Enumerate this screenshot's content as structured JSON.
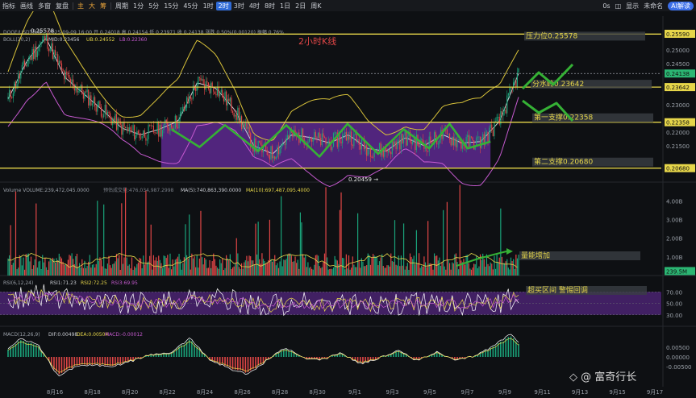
{
  "toolbar": {
    "items": [
      "指标",
      "画线",
      "多窗",
      "复盘",
      "主",
      "大",
      "筹",
      "周期",
      "1分",
      "5分",
      "15分",
      "45分",
      "1时",
      "2时",
      "3时",
      "4时",
      "8时",
      "1日",
      "2日",
      "周K"
    ],
    "active_period": "2时",
    "right_text": "0s",
    "settings_label": "显示",
    "account_label": "未命名",
    "ai_label": "AI解读"
  },
  "header": {
    "symbol": "DOGE/USDT永续",
    "quote": "2025-09-09 16:00 开 0.24018 高 0.24154 低 0.23971 收 0.24138 涨跌 0.50%(0.00120) 振幅 0.76%",
    "boll_label": "BOLL(20,2)",
    "boll_mid": "MID:0.23456",
    "boll_ub": "UB:0.24552",
    "boll_lb": "LB:0.22360"
  },
  "volume_header": {
    "label": "Volume VOLUME:239,472,045.0000",
    "est": "预估成交量:476,034,987.2998",
    "ma5": "MA(5):740,863,390.0000",
    "ma10": "MA(10):697,487,095.4000"
  },
  "rsi_header": {
    "label": "RSI(6,12,24)",
    "rsi1": "RSI1:71.23",
    "rsi2": "RSI2:72.25",
    "rsi3": "RSI3:69.95"
  },
  "macd_header": {
    "label": "MACD(12,26,9)",
    "dif": "DIF:0.00498",
    "dea": "DEA:0.00504",
    "macd": "MACD:-0.00012"
  },
  "annotations": {
    "title": "2小时K线",
    "resistance": "压力位0.25578",
    "watershed": "分水岭0.23642",
    "support1": "第一支撑0.22358",
    "support2": "第二支撑0.20680",
    "peak_label": "0.25578",
    "low_label": "0.20459",
    "volume_note": "量能增加",
    "rsi_note": "超买区间 警惕回调",
    "watermark": "@ 富奇行长"
  },
  "price_axis": [
    "0.25590",
    "0.25000",
    "0.24500",
    "0.24138",
    "0.23642",
    "0.23000",
    "0.22358",
    "0.22000",
    "0.21500",
    "0.20680"
  ],
  "volume_axis": [
    "4.00B",
    "3.00B",
    "2.00B",
    "1.00B",
    "239.5M"
  ],
  "rsi_axis": [
    "70.00",
    "50.00",
    "30.00"
  ],
  "macd_axis": [
    "0.00500",
    "0.00000",
    "-0.00500"
  ],
  "x_axis": [
    "8月16",
    "8月18",
    "8月20",
    "8月22",
    "8月24",
    "8月26",
    "8月28",
    "8月30",
    "9月1",
    "9月3",
    "9月5",
    "9月7",
    "9月9",
    "9月11",
    "9月13",
    "9月15",
    "9月17"
  ],
  "colors": {
    "up": "#1aa37a",
    "down": "#e04646",
    "level": "#e6d64a",
    "boll": "#d8c23a",
    "purple": "#6c2ea6",
    "arrow": "#35b135",
    "current": "#2bb673"
  },
  "chart_data": {
    "type": "candlestick",
    "title": "2小时K线",
    "symbol": "DOGE/USDT永续",
    "interval": "2h",
    "last_close": 0.24138,
    "horizontal_levels": [
      {
        "name": "压力位",
        "value": 0.25578
      },
      {
        "name": "分水岭",
        "value": 0.23642
      },
      {
        "name": "第一支撑",
        "value": 0.22358
      },
      {
        "name": "第二支撑",
        "value": 0.2068
      }
    ],
    "range_box": {
      "low": 0.2068,
      "high": 0.2236,
      "x_from": "8月26",
      "x_to": "9月8"
    },
    "marked_high": 0.25578,
    "marked_low": 0.20459,
    "close_path": [
      [
        "8月13",
        0.232
      ],
      [
        "8月14",
        0.246
      ],
      [
        "8月15",
        0.2545
      ],
      [
        "8月16",
        0.24
      ],
      [
        "8月17",
        0.234
      ],
      [
        "8月18",
        0.228
      ],
      [
        "8月19",
        0.2215
      ],
      [
        "8月20",
        0.219
      ],
      [
        "8月21",
        0.221
      ],
      [
        "8月22",
        0.224
      ],
      [
        "8月23",
        0.238
      ],
      [
        "8月24",
        0.236
      ],
      [
        "8月25",
        0.228
      ],
      [
        "8月26",
        0.215
      ],
      [
        "8月27",
        0.212
      ],
      [
        "8月28",
        0.219
      ],
      [
        "8月29",
        0.218
      ],
      [
        "8月30",
        0.216
      ],
      [
        "8月31",
        0.219
      ],
      [
        "9月1",
        0.214
      ],
      [
        "9月2",
        0.213
      ],
      [
        "9月3",
        0.218
      ],
      [
        "9月4",
        0.215
      ],
      [
        "9月5",
        0.219
      ],
      [
        "9月6",
        0.216
      ],
      [
        "9月7",
        0.2165
      ],
      [
        "9月8",
        0.224
      ],
      [
        "9月9",
        0.2414
      ]
    ],
    "volume_ma5": 740863390,
    "volume_ma10": 697487095.4,
    "rsi": {
      "rsi6": 71.23,
      "rsi12": 72.25,
      "rsi24": 69.95
    },
    "macd": {
      "dif": 0.00498,
      "dea": 0.00504,
      "macd": -0.00012
    }
  }
}
